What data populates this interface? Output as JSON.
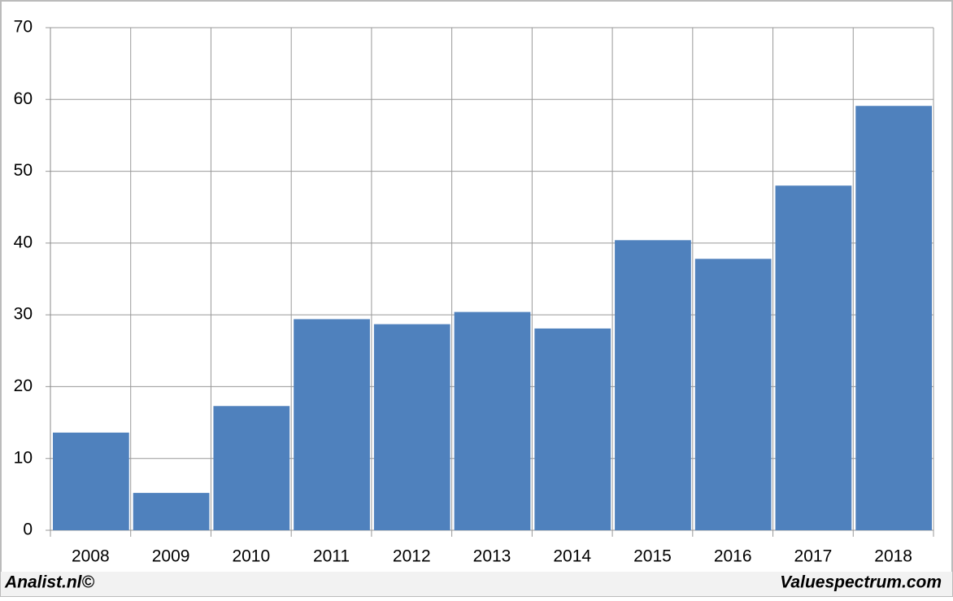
{
  "chart_data": {
    "type": "bar",
    "categories": [
      "2008",
      "2009",
      "2010",
      "2011",
      "2012",
      "2013",
      "2014",
      "2015",
      "2016",
      "2017",
      "2018"
    ],
    "values": [
      13.6,
      5.2,
      17.3,
      29.4,
      28.7,
      30.4,
      28.1,
      40.4,
      37.8,
      48.0,
      59.1
    ],
    "color": "#4f81bd",
    "ylim": [
      0,
      70
    ],
    "yticks": [
      0,
      10,
      20,
      30,
      40,
      50,
      60,
      70
    ],
    "grid": true,
    "footer_left": "Analist.nl©",
    "footer_right": "Valuespectrum.com"
  }
}
